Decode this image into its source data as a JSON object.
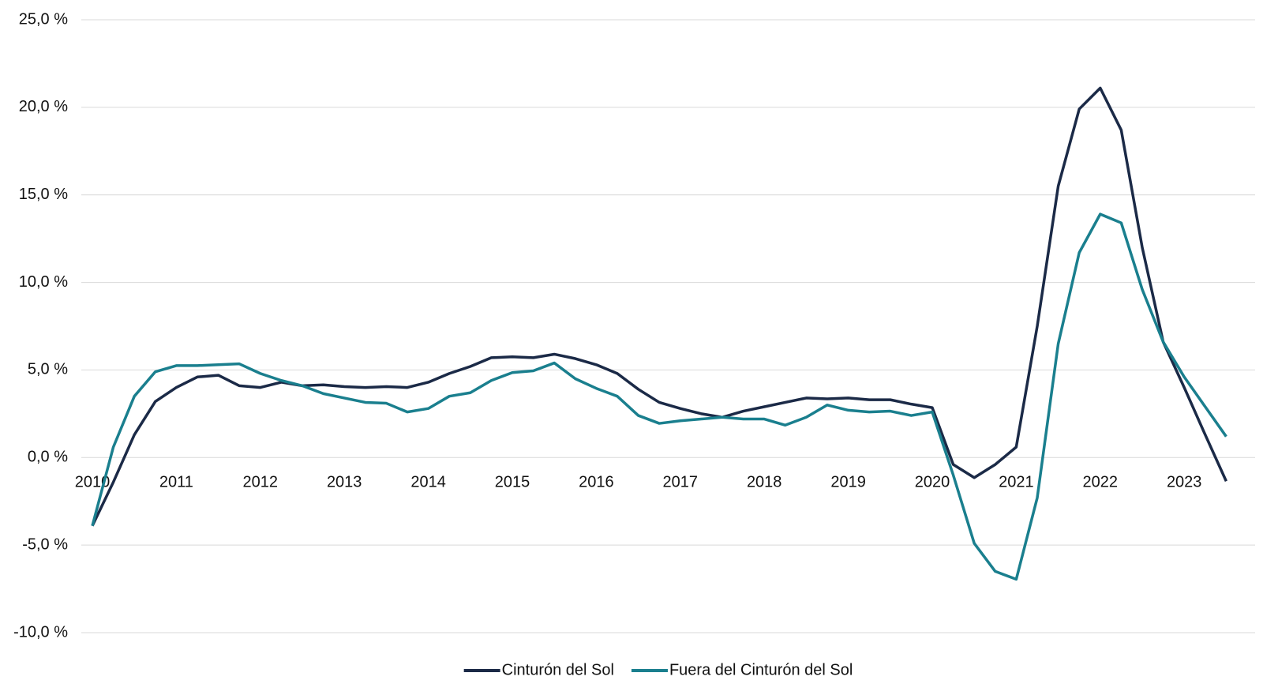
{
  "chart_data": {
    "type": "line",
    "categories": [
      "2010",
      null,
      null,
      null,
      "2011",
      null,
      null,
      null,
      "2012",
      null,
      null,
      null,
      "2013",
      null,
      null,
      null,
      "2014",
      null,
      null,
      null,
      "2015",
      null,
      null,
      null,
      "2016",
      null,
      null,
      null,
      "2017",
      null,
      null,
      null,
      "2018",
      null,
      null,
      null,
      "2019",
      null,
      null,
      null,
      "2020",
      null,
      null,
      null,
      "2021",
      null,
      null,
      null,
      "2022",
      null,
      null,
      null,
      "2023",
      null,
      null
    ],
    "series": [
      {
        "name": "Cinturón del Sol",
        "color": "#1b2a47",
        "values": [
          -3.9,
          -1.4,
          1.3,
          3.2,
          4.0,
          4.6,
          4.7,
          4.1,
          4.0,
          4.3,
          4.1,
          4.15,
          4.05,
          4.0,
          4.05,
          4.0,
          4.3,
          4.8,
          5.2,
          5.7,
          5.75,
          5.7,
          5.9,
          5.65,
          5.3,
          4.8,
          3.9,
          3.15,
          2.8,
          2.5,
          2.3,
          2.65,
          2.9,
          3.15,
          3.4,
          3.35,
          3.4,
          3.3,
          3.3,
          3.05,
          2.85,
          -0.4,
          -1.15,
          -0.4,
          0.6,
          7.5,
          15.5,
          19.9,
          21.1,
          18.7,
          12.0,
          6.6,
          4.0,
          1.3,
          -1.35
        ]
      },
      {
        "name": "Fuera del Cinturón del Sol",
        "color": "#1a7f8e",
        "values": [
          -3.9,
          0.6,
          3.5,
          4.9,
          5.25,
          5.25,
          5.3,
          5.35,
          4.8,
          4.4,
          4.1,
          3.65,
          3.4,
          3.15,
          3.1,
          2.6,
          2.8,
          3.5,
          3.7,
          4.4,
          4.85,
          4.95,
          5.4,
          4.5,
          3.95,
          3.5,
          2.4,
          1.95,
          2.1,
          2.2,
          2.3,
          2.2,
          2.2,
          1.85,
          2.3,
          3.0,
          2.7,
          2.6,
          2.65,
          2.4,
          2.6,
          -1.0,
          -4.9,
          -6.5,
          -6.95,
          -2.3,
          6.5,
          11.7,
          13.9,
          13.4,
          9.6,
          6.6,
          4.6,
          2.9,
          1.2
        ]
      }
    ],
    "ylim": [
      -10,
      25
    ],
    "yticks": [
      {
        "value": -10,
        "label": "-10,0 %"
      },
      {
        "value": -5,
        "label": "-5,0 %"
      },
      {
        "value": 0,
        "label": "0,0 %"
      },
      {
        "value": 5,
        "label": "5,0 %"
      },
      {
        "value": 10,
        "label": "10,0 %"
      },
      {
        "value": 15,
        "label": "15,0 %"
      },
      {
        "value": 20,
        "label": "20,0 %"
      },
      {
        "value": 25,
        "label": "25,0 %"
      }
    ],
    "grid": true
  }
}
